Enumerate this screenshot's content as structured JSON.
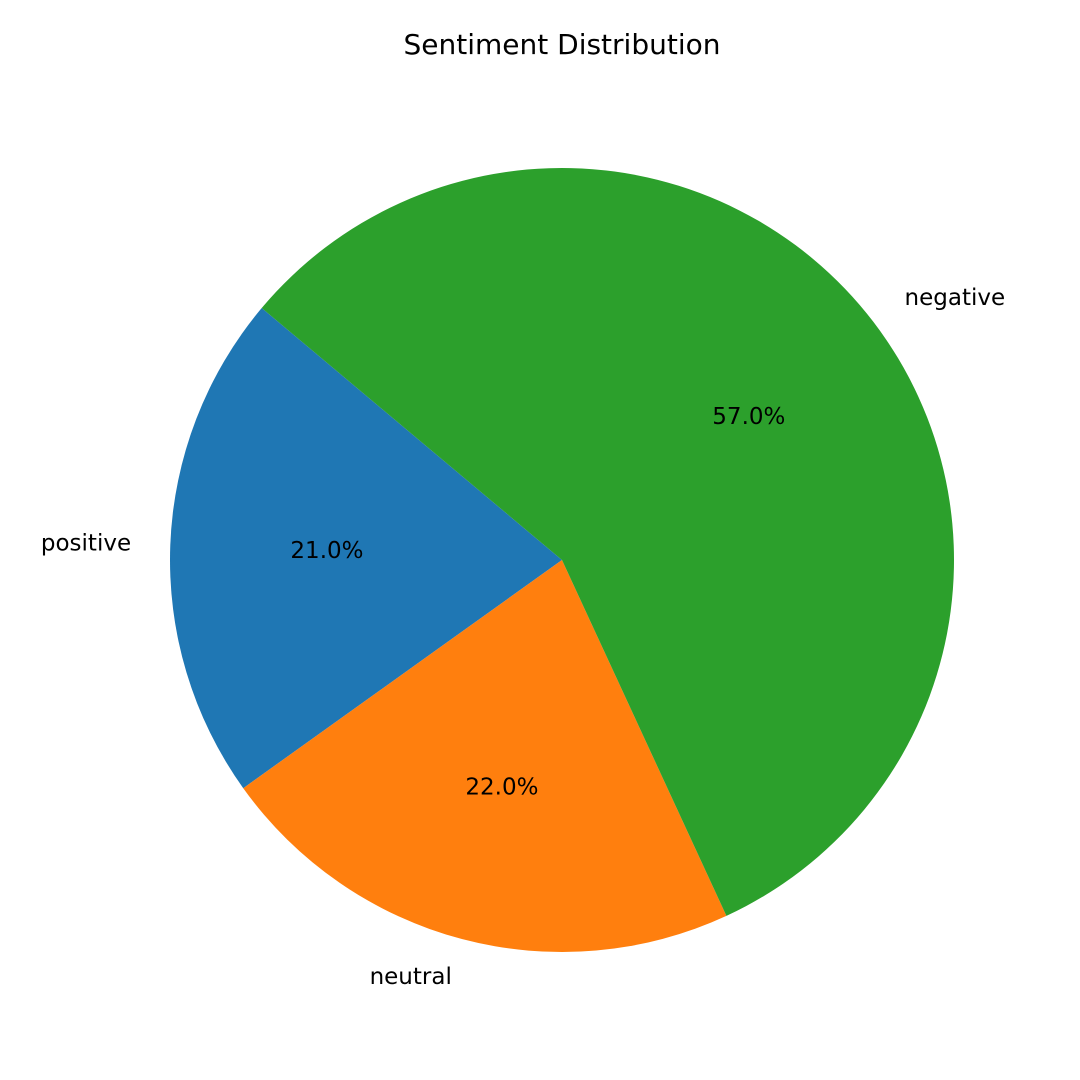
{
  "chart_data": {
    "type": "pie",
    "title": "Sentiment Distribution",
    "labels": [
      "positive",
      "neutral",
      "negative"
    ],
    "values": [
      21.0,
      22.0,
      57.0
    ],
    "percent_labels": [
      "21.0%",
      "22.0%",
      "57.0%"
    ],
    "colors": [
      "#1f77b4",
      "#ff7f0e",
      "#2ca02c"
    ],
    "start_angle_deg": 140,
    "direction": "counterclockwise"
  }
}
